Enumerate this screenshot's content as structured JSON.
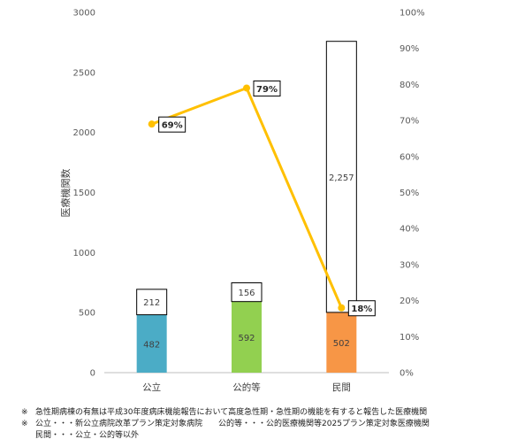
{
  "chart_data": {
    "type": "bar",
    "stacked": true,
    "categories": [
      "公立",
      "公的等",
      "民間"
    ],
    "series": [
      {
        "values": [
          482,
          592,
          502
        ],
        "colors": [
          "#4BACC6",
          "#92D050",
          "#F79646"
        ]
      },
      {
        "values": [
          212,
          156,
          2257
        ],
        "color": "#FFFFFF"
      }
    ],
    "value_labels": [
      [
        "482",
        "592",
        "502"
      ],
      [
        "212",
        "156",
        "2,257"
      ]
    ],
    "line": {
      "values": [
        0.69,
        0.79,
        0.18
      ],
      "labels": [
        "69%",
        "79%",
        "18%"
      ],
      "color": "#FFC000",
      "axis": "right"
    },
    "ylabel": "医療機関数",
    "ylim": [
      0,
      3000
    ],
    "yticks": [
      "0",
      "500",
      "1000",
      "1500",
      "2000",
      "2500",
      "3000"
    ],
    "y2lim": [
      0,
      1
    ],
    "y2ticks": [
      "0%",
      "10%",
      "20%",
      "30%",
      "40%",
      "50%",
      "60%",
      "70%",
      "80%",
      "90%",
      "100%"
    ],
    "grid": false
  },
  "notes": [
    {
      "mark": "※",
      "lines": [
        "急性期病棟の有無は平成30年度病床機能報告において高度急性期・急性期の機能を有すると報告した医療機関"
      ]
    },
    {
      "mark": "※",
      "lines": [
        "公立・・・新公立病院改革プラン策定対象病院",
        "公的等・・・公的医療機関等2025プラン策定対象医療機関"
      ]
    },
    {
      "mark": "",
      "lines": [
        "民間・・・公立・公的等以外"
      ]
    }
  ]
}
